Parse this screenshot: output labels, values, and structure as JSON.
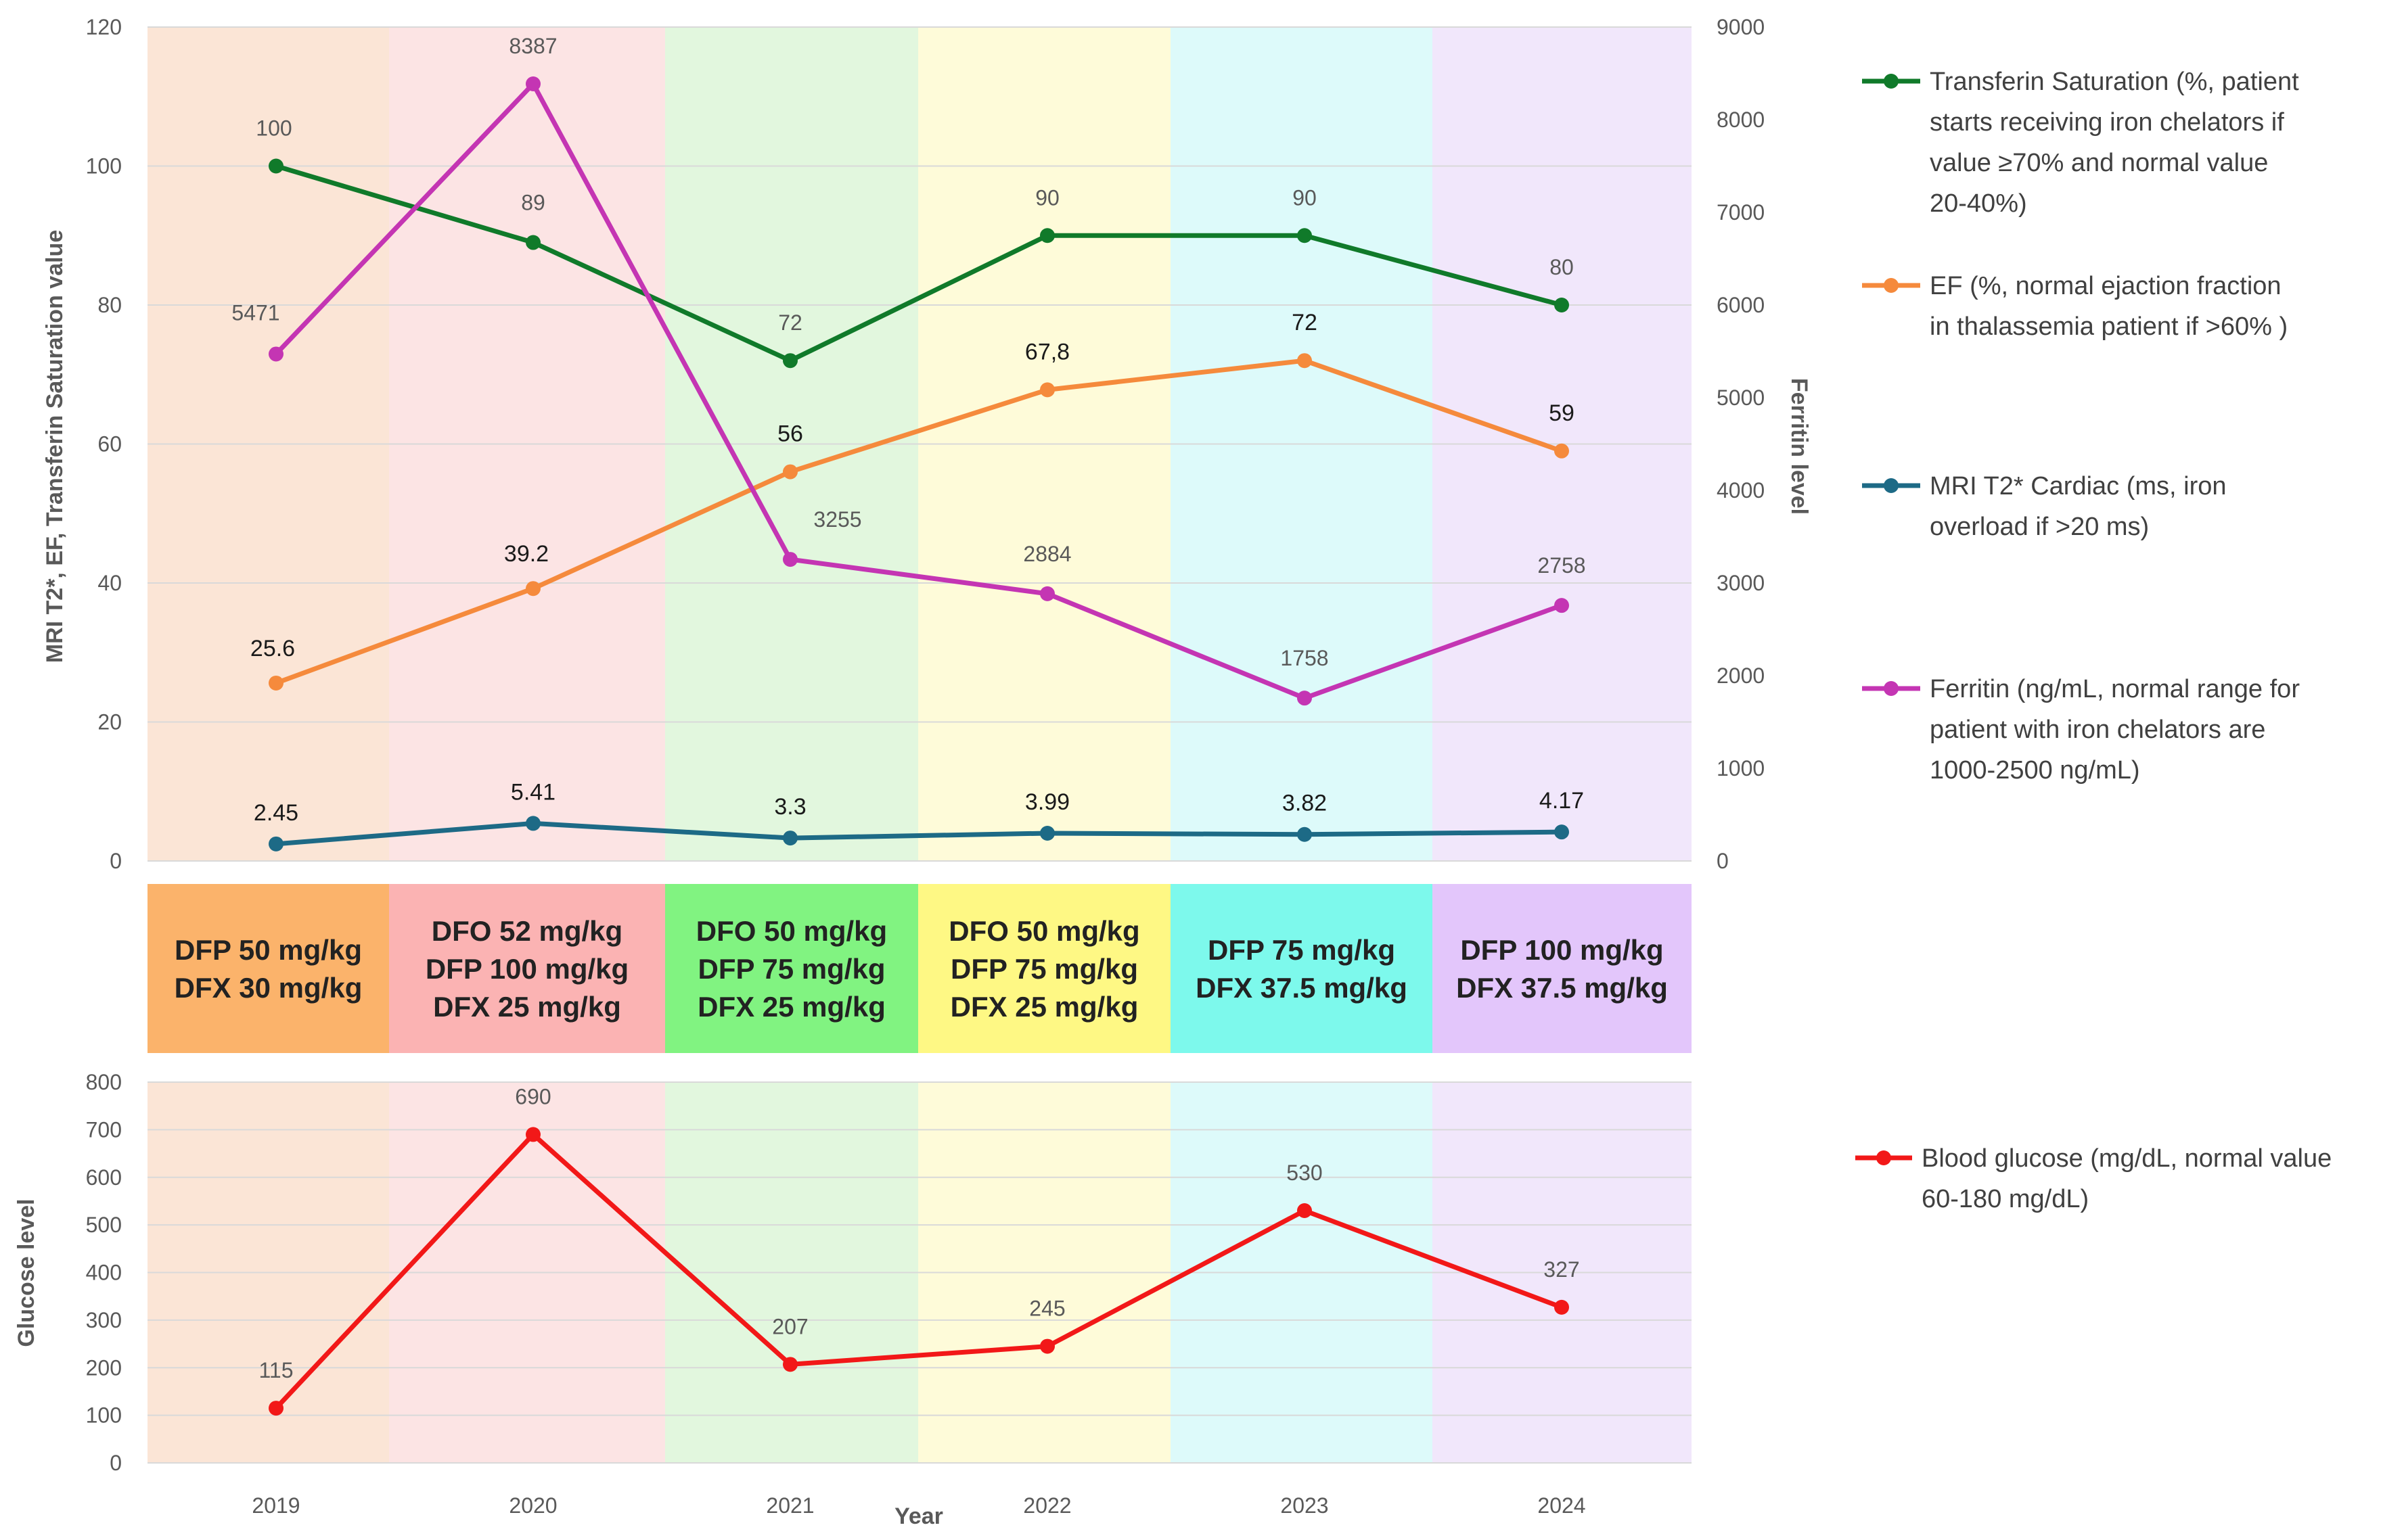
{
  "chart_data": {
    "type": "line",
    "years": [
      "2019",
      "2020",
      "2021",
      "2022",
      "2023",
      "2024"
    ],
    "xlabel": "Year",
    "year_band_colors": [
      "#fbe5d6",
      "#fce4e4",
      "#e2f7de",
      "#fefbd9",
      "#ddfafa",
      "#f1e7fb"
    ],
    "regimens": [
      {
        "lines": [
          "DFP 50 mg/kg",
          "DFX 30 mg/kg"
        ],
        "color": "#fbb36b"
      },
      {
        "lines": [
          "DFO 52 mg/kg",
          "DFP 100 mg/kg",
          "DFX 25 mg/kg"
        ],
        "color": "#fbb3b3"
      },
      {
        "lines": [
          "DFO 50 mg/kg",
          "DFP 75 mg/kg",
          "DFX 25 mg/kg"
        ],
        "color": "#81f381"
      },
      {
        "lines": [
          "DFO 50 mg/kg",
          "DFP 75 mg/kg",
          "DFX 25 mg/kg"
        ],
        "color": "#fef884"
      },
      {
        "lines": [
          "DFP 75 mg/kg",
          "DFX 37.5 mg/kg"
        ],
        "color": "#7df9ec"
      },
      {
        "lines": [
          "DFP 100 mg/kg",
          "DFX 37.5 mg/kg"
        ],
        "color": "#e3c6fb"
      }
    ],
    "top_panel": {
      "left_axis": {
        "label": "MRI T2*, EF, Transferin Saturation value",
        "min": 0,
        "max": 120,
        "ticks": [
          "0",
          "20",
          "40",
          "60",
          "80",
          "100",
          "120"
        ]
      },
      "right_axis": {
        "label": "Ferritin level",
        "min": 0,
        "max": 9000,
        "ticks": [
          "0",
          "1000",
          "2000",
          "3000",
          "4000",
          "5000",
          "6000",
          "7000",
          "8000",
          "9000"
        ]
      },
      "series": [
        {
          "name": "Transferin Saturation",
          "axis": "left",
          "color": "#107a2a",
          "values": [
            100,
            89,
            72,
            90,
            90,
            80
          ],
          "labels": [
            "100",
            "89",
            "72",
            "90",
            "90",
            "80"
          ],
          "legend": [
            "Transferin Saturation (%, patient",
            "starts receiving iron chelators if",
            "value ≥70% and normal value",
            "20-40%)"
          ]
        },
        {
          "name": "EF",
          "axis": "left",
          "color": "#f58a3c",
          "values": [
            25.6,
            39.2,
            56,
            67.8,
            72,
            59
          ],
          "labels": [
            "25.6",
            "39.2",
            "56",
            "67,8",
            "72",
            "59"
          ],
          "legend": [
            "EF (%, normal ejaction fraction",
            "in thalassemia patient if >60% )"
          ]
        },
        {
          "name": "MRI T2* Cardiac",
          "axis": "left",
          "color": "#1d6a86",
          "values": [
            2.45,
            5.41,
            3.3,
            3.99,
            3.82,
            4.17
          ],
          "labels": [
            "2.45",
            "5.41",
            "3.3",
            "3.99",
            "3.82",
            "4.17"
          ],
          "legend": [
            "MRI T2* Cardiac (ms, iron",
            "overload if >20 ms)"
          ]
        },
        {
          "name": "Ferritin",
          "axis": "right",
          "color": "#c435b3",
          "values": [
            5471,
            8387,
            3255,
            2884,
            1758,
            2758
          ],
          "labels": [
            "5471",
            "8387",
            "3255",
            "2884",
            "1758",
            "2758"
          ],
          "legend": [
            "Ferritin (ng/mL, normal range for",
            "patient with iron chelators are",
            "1000-2500 ng/mL)"
          ]
        }
      ]
    },
    "bottom_panel": {
      "axis": {
        "label": "Glucose level",
        "min": 0,
        "max": 800,
        "ticks": [
          "0",
          "100",
          "200",
          "300",
          "400",
          "500",
          "600",
          "700",
          "800"
        ]
      },
      "series": [
        {
          "name": "Blood glucose",
          "color": "#f21818",
          "values": [
            115,
            690,
            207,
            245,
            530,
            327
          ],
          "labels": [
            "115",
            "690",
            "207",
            "245",
            "530",
            "327"
          ],
          "legend": [
            "Blood glucose (mg/dL, normal value",
            "60-180 mg/dL)"
          ]
        }
      ]
    }
  }
}
